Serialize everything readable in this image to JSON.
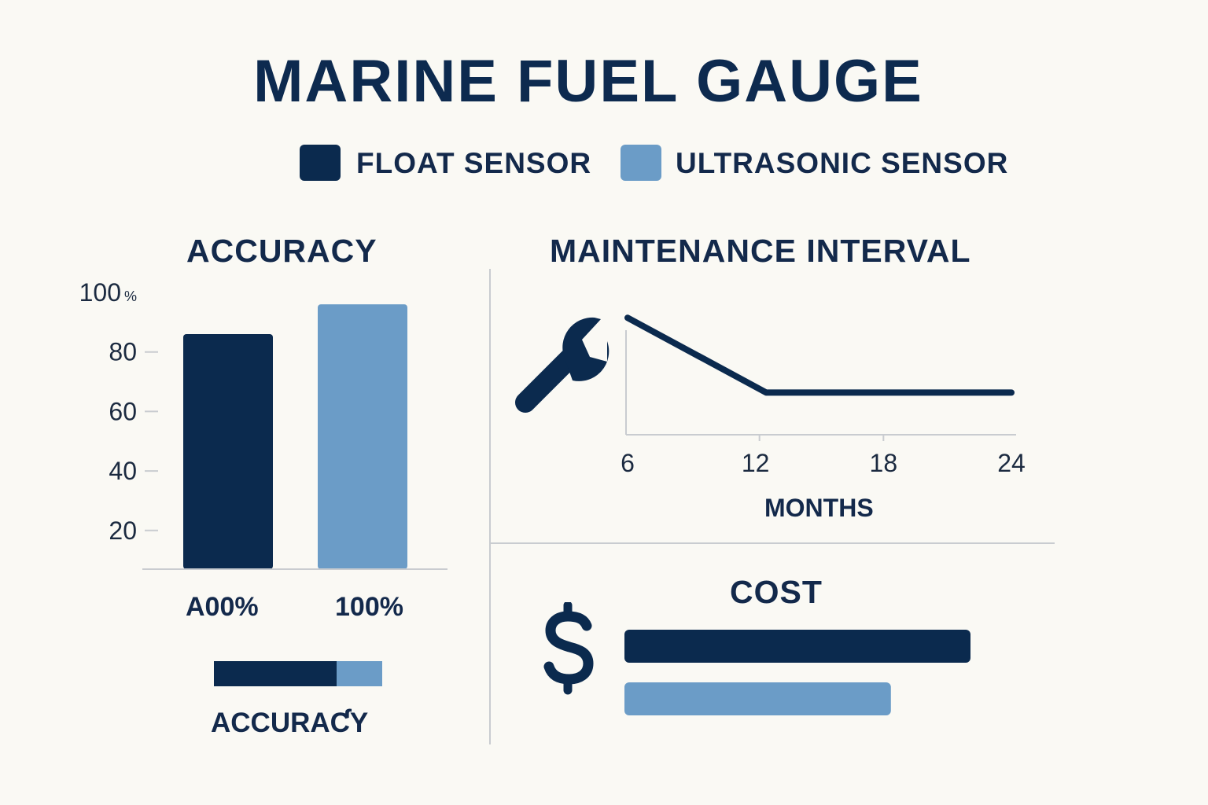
{
  "title": "MARINE FUEL GAUGE",
  "colors": {
    "float": "#0b2a4e",
    "ultrasonic": "#6b9cc7",
    "background": "#faf9f4",
    "axis": "#c9ccd0"
  },
  "legend": [
    {
      "label": "FLOAT SENSOR",
      "color": "#0b2a4e"
    },
    {
      "label": "ULTRASONIC SENSOR",
      "color": "#6b9cc7"
    }
  ],
  "accuracy_panel": {
    "title": "ACCURACY",
    "y_unit": "%",
    "bottom_label": "ACCURAƇY"
  },
  "maintenance_panel": {
    "title": "MAINTENANCE INTERVAL",
    "xlabel": "MONTHS",
    "icon": "wrench-icon"
  },
  "cost_panel": {
    "title": "COST",
    "icon": "dollar-icon"
  },
  "chart_data": [
    {
      "type": "bar",
      "title": "ACCURACY",
      "categories": [
        "A00%",
        "100%"
      ],
      "series": [
        {
          "name": "FLOAT SENSOR",
          "values": [
            86,
            null
          ]
        },
        {
          "name": "ULTRASONIC SENSOR",
          "values": [
            null,
            96
          ]
        }
      ],
      "values": [
        86,
        96
      ],
      "yticks": [
        100,
        80,
        60,
        40,
        20
      ],
      "ylim": [
        7,
        100
      ],
      "ylabel": "",
      "xlabel": "",
      "grid": false
    },
    {
      "type": "bar",
      "orientation": "horizontal",
      "title": "ACCURAƇY",
      "categories": [
        ""
      ],
      "series": [
        {
          "name": "FLOAT SENSOR",
          "values": [
            0.73
          ]
        },
        {
          "name": "ULTRASONIC SENSOR",
          "values": [
            0.27
          ]
        }
      ],
      "stacked": true
    },
    {
      "type": "line",
      "title": "MAINTENANCE INTERVAL",
      "x": [
        6,
        12.5,
        24
      ],
      "y": [
        0.86,
        0.31,
        0.31
      ],
      "xticks": [
        6,
        12,
        18,
        24
      ],
      "xlim": [
        6,
        24
      ],
      "ylim": [
        0,
        1
      ],
      "xlabel": "MONTHS",
      "ylabel": "",
      "grid": false
    },
    {
      "type": "bar",
      "orientation": "horizontal",
      "title": "COST",
      "categories": [
        "FLOAT SENSOR",
        "ULTRASONIC SENSOR"
      ],
      "values": [
        100,
        77
      ],
      "xlim": [
        0,
        100
      ]
    }
  ]
}
